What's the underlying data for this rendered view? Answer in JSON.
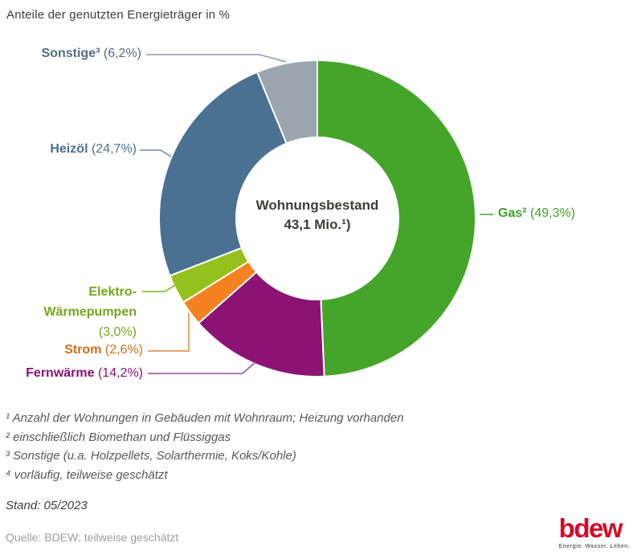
{
  "title": "Anteile der genutzten Energieträger in %",
  "chart_data": {
    "type": "donut",
    "title": "Anteile der genutzten Energieträger in %",
    "unit": "%",
    "center_label": {
      "line1": "Wohnungsbestand",
      "line2": "43,1 Mio.¹)"
    },
    "series": [
      {
        "id": "gas",
        "label": "Gas²",
        "value": 49.3,
        "pct_label": "(49,3%)",
        "color": "#45A52B",
        "label_color": "#3EA32A",
        "line_color": "#45A52B"
      },
      {
        "id": "fernwaerme",
        "label": "Fernwärme",
        "value": 14.2,
        "pct_label": "(14,2%)",
        "color": "#8B1373",
        "label_color": "#8B1373",
        "line_color": "#9C4D91"
      },
      {
        "id": "strom",
        "label": "Strom",
        "value": 2.6,
        "pct_label": "(2,6%)",
        "color": "#F58220",
        "label_color": "#CE6E17",
        "line_color": "#E0893C"
      },
      {
        "id": "waermepumpen",
        "label": "Elektro-\nWärmepumpen",
        "value": 3.0,
        "pct_label": "(3,0%)",
        "color": "#95C11F",
        "label_color": "#74A51D",
        "line_color": "#7FB11E"
      },
      {
        "id": "heizoel",
        "label": "Heizöl",
        "value": 24.7,
        "pct_label": "(24,7%)",
        "color": "#4A7092",
        "label_color": "#4A7092",
        "line_color": "#6B89A4"
      },
      {
        "id": "sonstige",
        "label": "Sonstige³",
        "value": 6.2,
        "pct_label": "(6,2%)",
        "color": "#9AA5AF",
        "label_color": "#566B7E",
        "line_color": "#8E99A3"
      }
    ]
  },
  "footnotes": [
    "¹ Anzahl der Wohnungen in Gebäuden mit Wohnraum; Heizung vorhanden",
    "² einschließlich Biomethan und Flüssiggas",
    "³ Sonstige (u.a. Holzpellets, Solarthermie, Koks/Kohle)",
    "⁴ vorläufig, teilweise geschätzt"
  ],
  "stand": "Stand: 05/2023",
  "source": "Quelle: BDEW; teilweise geschätzt",
  "logo": {
    "text": "bdew",
    "tagline": "Energie. Wasser. Leben.",
    "color": "#D70926",
    "tagline_color": "#706F6F"
  }
}
